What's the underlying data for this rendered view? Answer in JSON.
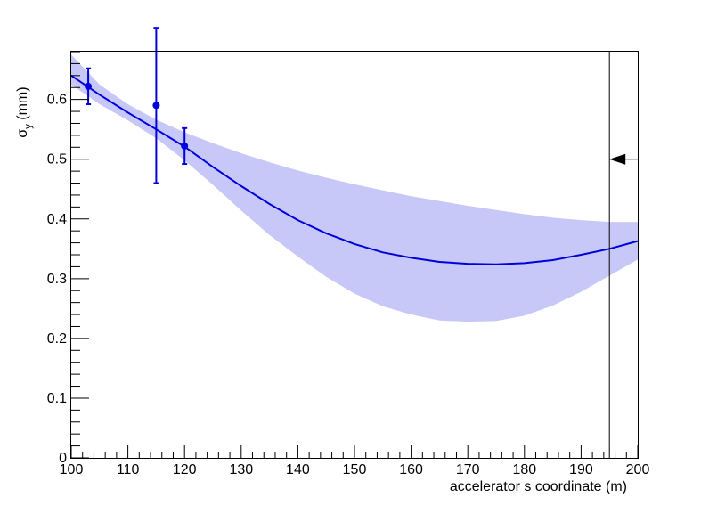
{
  "chart_data": {
    "type": "line",
    "title": "",
    "xlabel": "accelerator s coordinate (m)",
    "ylabel_main": "σ",
    "ylabel_sub": "y",
    "ylabel_units": "(mm)",
    "xlim": [
      100,
      200
    ],
    "ylim": [
      0,
      0.68
    ],
    "xticks": [
      100,
      110,
      120,
      130,
      140,
      150,
      160,
      170,
      180,
      190,
      200
    ],
    "yticks": [
      0,
      0.1,
      0.2,
      0.3,
      0.4,
      0.5,
      0.6
    ],
    "xtick_labels": [
      "100",
      "110",
      "120",
      "130",
      "140",
      "150",
      "160",
      "170",
      "180",
      "190",
      "200"
    ],
    "ytick_labels": [
      "0",
      "0.1",
      "0.2",
      "0.3",
      "0.4",
      "0.5",
      "0.6"
    ],
    "grid": false,
    "colors": {
      "fit": "#0000dd",
      "band": "#c8c8f8",
      "points": "#0000dd",
      "marker": "#000000"
    },
    "fit_curve": {
      "x": [
        100,
        105,
        110,
        115,
        120,
        125,
        130,
        135,
        140,
        145,
        150,
        155,
        160,
        165,
        170,
        175,
        180,
        185,
        190,
        195,
        200
      ],
      "y": [
        0.64,
        0.608,
        0.578,
        0.55,
        0.521,
        0.487,
        0.455,
        0.425,
        0.398,
        0.376,
        0.358,
        0.344,
        0.335,
        0.328,
        0.325,
        0.324,
        0.326,
        0.331,
        0.34,
        0.35,
        0.363
      ]
    },
    "band": {
      "x": [
        100,
        105,
        110,
        115,
        120,
        125,
        130,
        135,
        140,
        145,
        150,
        155,
        160,
        165,
        170,
        175,
        180,
        185,
        190,
        195,
        200
      ],
      "upper": [
        0.675,
        0.625,
        0.592,
        0.566,
        0.545,
        0.527,
        0.51,
        0.495,
        0.481,
        0.469,
        0.458,
        0.448,
        0.438,
        0.43,
        0.422,
        0.415,
        0.408,
        0.402,
        0.398,
        0.395,
        0.395
      ],
      "lower": [
        0.625,
        0.592,
        0.565,
        0.535,
        0.498,
        0.457,
        0.414,
        0.373,
        0.337,
        0.303,
        0.275,
        0.254,
        0.24,
        0.23,
        0.228,
        0.229,
        0.238,
        0.255,
        0.278,
        0.305,
        0.332
      ]
    },
    "points": [
      {
        "x": 103,
        "y": 0.622,
        "err": 0.03
      },
      {
        "x": 115,
        "y": 0.59,
        "err": 0.13
      },
      {
        "x": 120,
        "y": 0.522,
        "err": 0.03
      }
    ],
    "marker": {
      "x": 195,
      "arrow_y": 0.5
    }
  }
}
